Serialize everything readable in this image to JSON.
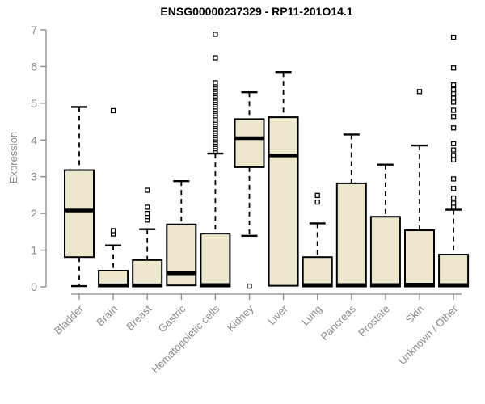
{
  "page": {
    "background": "#ffffff"
  },
  "header": {
    "title": "ENSG00000237329 - RP11-201O14.1"
  },
  "chart_data": {
    "type": "boxplot",
    "title": "ENSG00000237329 - RP11-201O14.1",
    "xlabel": "",
    "ylabel": "Expression",
    "ylim": [
      0,
      7
    ],
    "yticks": [
      "0",
      "1",
      "2",
      "3",
      "4",
      "5",
      "6",
      "7"
    ],
    "grid": false,
    "legend": "none",
    "categories": [
      "Bladder",
      "Brain",
      "Breast",
      "Gastric",
      "Hematopoietic cells",
      "Kidney",
      "Liver",
      "Lung",
      "Pancreas",
      "Prostate",
      "Skin",
      "Unknown / Other"
    ],
    "boxes": [
      {
        "category": "Bladder",
        "low": 0.02,
        "q1": 0.81,
        "median": 2.08,
        "q3": 3.18,
        "high": 4.9,
        "outliers": []
      },
      {
        "category": "Brain",
        "low": 0.01,
        "q1": 0.01,
        "median": 0.04,
        "q3": 0.44,
        "high": 1.13,
        "outliers": [
          1.44,
          1.53,
          4.8
        ]
      },
      {
        "category": "Breast",
        "low": 0.01,
        "q1": 0.01,
        "median": 0.04,
        "q3": 0.73,
        "high": 1.57,
        "outliers": [
          1.82,
          1.91,
          2.0,
          2.17,
          2.63
        ]
      },
      {
        "category": "Gastric",
        "low": 0.04,
        "q1": 0.04,
        "median": 0.37,
        "q3": 1.7,
        "high": 2.88,
        "outliers": []
      },
      {
        "category": "Hematopoietic cells",
        "low": 0.01,
        "q1": 0.01,
        "median": 0.05,
        "q3": 1.45,
        "high": 3.63,
        "outliers": [
          3.7,
          3.76,
          3.82,
          3.88,
          3.94,
          4.0,
          4.06,
          4.12,
          4.18,
          4.24,
          4.3,
          4.36,
          4.42,
          4.48,
          4.54,
          4.6,
          4.66,
          4.72,
          4.78,
          4.84,
          4.9,
          4.96,
          5.02,
          5.08,
          5.14,
          5.2,
          5.26,
          5.32,
          5.38,
          5.44,
          5.5,
          5.56,
          6.24,
          6.88
        ]
      },
      {
        "category": "Kidney",
        "low": 1.39,
        "q1": 3.26,
        "median": 4.05,
        "q3": 4.57,
        "high": 5.3,
        "outliers": [
          0.02
        ]
      },
      {
        "category": "Liver",
        "low": 0.03,
        "q1": 0.03,
        "median": 3.58,
        "q3": 4.62,
        "high": 5.85,
        "outliers": []
      },
      {
        "category": "Lung",
        "low": 0.01,
        "q1": 0.01,
        "median": 0.05,
        "q3": 0.81,
        "high": 1.73,
        "outliers": [
          2.31,
          2.49
        ]
      },
      {
        "category": "Pancreas",
        "low": 0.01,
        "q1": 0.01,
        "median": 0.05,
        "q3": 2.82,
        "high": 4.15,
        "outliers": []
      },
      {
        "category": "Prostate",
        "low": 0.01,
        "q1": 0.01,
        "median": 0.05,
        "q3": 1.91,
        "high": 3.33,
        "outliers": []
      },
      {
        "category": "Skin",
        "low": 0.01,
        "q1": 0.01,
        "median": 0.06,
        "q3": 1.54,
        "high": 3.85,
        "outliers": [
          5.32
        ]
      },
      {
        "category": "Unknown / Other",
        "low": 0.01,
        "q1": 0.01,
        "median": 0.05,
        "q3": 0.88,
        "high": 2.1,
        "outliers": [
          2.17,
          2.28,
          2.42,
          2.68,
          2.94,
          3.46,
          3.58,
          3.73,
          3.9,
          4.33,
          4.64,
          4.81,
          5.03,
          5.14,
          5.26,
          5.37,
          5.5,
          5.96,
          6.8
        ]
      }
    ],
    "colors": {
      "box_fill": "#EDE8CD",
      "box_border": "#000000",
      "median": "#000000",
      "whisker": "#000000",
      "axis": "#888888",
      "tick_label": "#8a8a8a",
      "title": "#000000",
      "background": "#ffffff"
    }
  }
}
